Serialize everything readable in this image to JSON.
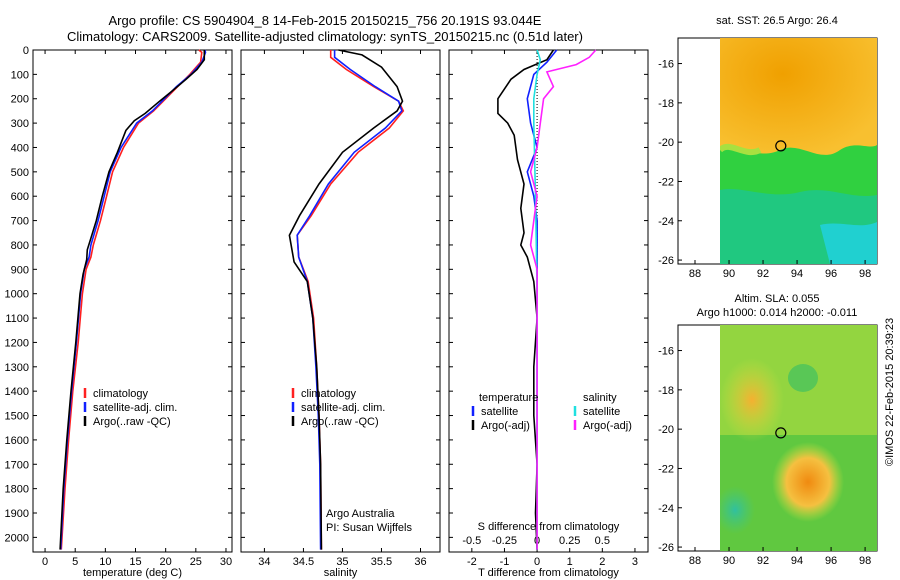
{
  "header": {
    "line1": "Argo profile: CS 5904904_8 14-Feb-2015 20150215_756 20.191S 93.044E",
    "line2": "Climatology: CARS2009. Satellite-adjusted climatology: synTS_20150215.nc (0.51d later)"
  },
  "colors": {
    "climatology": "#ff2020",
    "satellite": "#1020ff",
    "argo": "#000000",
    "sat_salinity": "#20e0e0",
    "argo_adj_salinity": "#ff20ff"
  },
  "credit": "©IMOS 22-Feb-2015 20:39:23",
  "depth_ticks": [
    "0",
    "100",
    "200",
    "300",
    "400",
    "500",
    "600",
    "700",
    "800",
    "900",
    "1000",
    "1100",
    "1200",
    "1300",
    "1400",
    "1500",
    "1600",
    "1700",
    "1800",
    "1900",
    "2000"
  ],
  "chart_data": [
    {
      "type": "line",
      "id": "temperature",
      "xlabel": "temperature (deg C)",
      "ylabel": "",
      "xlim": [
        -2,
        31
      ],
      "ylim": [
        0,
        2060
      ],
      "xticks": [
        0,
        5,
        10,
        15,
        20,
        25,
        30
      ],
      "x_tick_labels": [
        "0",
        "5",
        "10",
        "15",
        "20",
        "25",
        "30"
      ],
      "legend": [
        "climatology",
        "satellite-adj. clim.",
        "Argo(..raw -QC)"
      ],
      "series": [
        {
          "name": "climatology",
          "color": "#ff2020",
          "points": [
            [
              25.5,
              0
            ],
            [
              26,
              10
            ],
            [
              25.8,
              50
            ],
            [
              24,
              100
            ],
            [
              22,
              150
            ],
            [
              20,
              200
            ],
            [
              18,
              250
            ],
            [
              15.5,
              300
            ],
            [
              13,
              400
            ],
            [
              11.2,
              500
            ],
            [
              10.2,
              600
            ],
            [
              9.2,
              700
            ],
            [
              8,
              800
            ],
            [
              7.6,
              850
            ],
            [
              6.8,
              900
            ],
            [
              6.2,
              1000
            ],
            [
              5.5,
              1200
            ],
            [
              4.6,
              1400
            ],
            [
              3.9,
              1600
            ],
            [
              3.3,
              1800
            ],
            [
              2.7,
              2050
            ]
          ]
        },
        {
          "name": "satellite-adj. clim.",
          "color": "#1020ff",
          "points": [
            [
              26.5,
              0
            ],
            [
              26.6,
              10
            ],
            [
              26,
              50
            ],
            [
              24.2,
              100
            ],
            [
              21.8,
              150
            ],
            [
              19.8,
              200
            ],
            [
              17.8,
              250
            ],
            [
              15.2,
              300
            ],
            [
              12.6,
              400
            ],
            [
              10.8,
              500
            ],
            [
              9.8,
              600
            ],
            [
              8.8,
              700
            ],
            [
              7.6,
              800
            ],
            [
              7.3,
              850
            ],
            [
              6.5,
              900
            ],
            [
              5.9,
              1000
            ],
            [
              5.2,
              1200
            ],
            [
              4.4,
              1400
            ],
            [
              3.7,
              1600
            ],
            [
              3.1,
              1800
            ],
            [
              2.6,
              2050
            ]
          ]
        },
        {
          "name": "Argo(..raw -QC)",
          "color": "#000000",
          "points": [
            [
              26.4,
              0
            ],
            [
              26.4,
              40
            ],
            [
              25.2,
              80
            ],
            [
              23.4,
              120
            ],
            [
              21,
              170
            ],
            [
              19,
              210
            ],
            [
              16.6,
              260
            ],
            [
              14.8,
              290
            ],
            [
              13.4,
              330
            ],
            [
              12,
              420
            ],
            [
              10.6,
              500
            ],
            [
              9.5,
              600
            ],
            [
              8.5,
              700
            ],
            [
              7.5,
              780
            ],
            [
              7,
              820
            ],
            [
              6.9,
              860
            ],
            [
              6.3,
              920
            ],
            [
              5.8,
              1000
            ],
            [
              5.1,
              1200
            ],
            [
              4.3,
              1400
            ],
            [
              3.6,
              1600
            ],
            [
              3,
              1800
            ],
            [
              2.5,
              2050
            ]
          ]
        }
      ]
    },
    {
      "type": "line",
      "id": "salinity",
      "xlabel": "salinity",
      "ylabel": "",
      "xlim": [
        33.7,
        36.25
      ],
      "ylim": [
        0,
        2060
      ],
      "xticks": [
        34,
        34.5,
        35,
        35.5,
        36
      ],
      "x_tick_labels": [
        "34",
        "34.5",
        "35",
        "35.5",
        "36"
      ],
      "legend": [
        "climatology",
        "satellite-adj. clim.",
        "Argo(..raw -QC)"
      ],
      "annotation": [
        "Argo Australia",
        "PI: Susan Wijffels"
      ],
      "series": [
        {
          "name": "climatology",
          "color": "#ff2020",
          "points": [
            [
              34.85,
              0
            ],
            [
              34.85,
              30
            ],
            [
              35.05,
              80
            ],
            [
              35.4,
              150
            ],
            [
              35.72,
              210
            ],
            [
              35.78,
              250
            ],
            [
              35.6,
              320
            ],
            [
              35.2,
              420
            ],
            [
              34.85,
              550
            ],
            [
              34.6,
              680
            ],
            [
              34.42,
              760
            ],
            [
              34.44,
              850
            ],
            [
              34.56,
              950
            ],
            [
              34.63,
              1100
            ],
            [
              34.67,
              1300
            ],
            [
              34.7,
              1500
            ],
            [
              34.72,
              1700
            ],
            [
              34.73,
              2050
            ]
          ]
        },
        {
          "name": "satellite-adj. clim.",
          "color": "#1020ff",
          "points": [
            [
              34.9,
              0
            ],
            [
              34.9,
              30
            ],
            [
              35.1,
              80
            ],
            [
              35.42,
              150
            ],
            [
              35.72,
              210
            ],
            [
              35.76,
              250
            ],
            [
              35.55,
              320
            ],
            [
              35.15,
              420
            ],
            [
              34.82,
              550
            ],
            [
              34.58,
              680
            ],
            [
              34.42,
              760
            ],
            [
              34.44,
              850
            ],
            [
              34.55,
              950
            ],
            [
              34.62,
              1100
            ],
            [
              34.66,
              1300
            ],
            [
              34.69,
              1500
            ],
            [
              34.71,
              1700
            ],
            [
              34.72,
              2050
            ]
          ]
        },
        {
          "name": "Argo(..raw -QC)",
          "color": "#000000",
          "points": [
            [
              34.95,
              0
            ],
            [
              35.25,
              20
            ],
            [
              35.5,
              70
            ],
            [
              35.7,
              150
            ],
            [
              35.77,
              210
            ],
            [
              35.7,
              250
            ],
            [
              35.4,
              320
            ],
            [
              35.0,
              420
            ],
            [
              34.7,
              550
            ],
            [
              34.45,
              680
            ],
            [
              34.32,
              760
            ],
            [
              34.38,
              870
            ],
            [
              34.55,
              950
            ],
            [
              34.62,
              1100
            ],
            [
              34.67,
              1300
            ],
            [
              34.7,
              1500
            ],
            [
              34.72,
              1700
            ],
            [
              34.73,
              2050
            ]
          ]
        }
      ]
    },
    {
      "type": "line",
      "id": "difference",
      "xlabel": "T difference from climatology",
      "xlabel_top": "S difference from climatology",
      "xlim": [
        -2.7,
        3.4
      ],
      "ylim": [
        0,
        2060
      ],
      "xticks": [
        -2,
        -1,
        0,
        1,
        2,
        3
      ],
      "x_tick_labels": [
        "-2",
        "-1",
        "0",
        "1",
        "2",
        "3"
      ],
      "x_tick_labels_top": [
        "-0.5",
        "-0.25",
        "0",
        "0.25",
        "0.5"
      ],
      "legend": [
        "temperature",
        "satellite",
        "Argo(-adj)",
        "salinity",
        "satellite",
        "Argo(-adj)"
      ],
      "series": [
        {
          "name": "temperature satellite",
          "color": "#1020ff",
          "points": [
            [
              0.6,
              0
            ],
            [
              0.3,
              50
            ],
            [
              -0.1,
              100
            ],
            [
              -0.3,
              200
            ],
            [
              -0.2,
              300
            ],
            [
              0,
              400
            ],
            [
              -0.3,
              500
            ],
            [
              -0.1,
              600
            ],
            [
              0,
              700
            ],
            [
              0,
              900
            ],
            [
              0,
              2050
            ]
          ]
        },
        {
          "name": "temperature Argo(-adj)",
          "color": "#000000",
          "points": [
            [
              0.5,
              0
            ],
            [
              0.3,
              40
            ],
            [
              -0.4,
              80
            ],
            [
              -0.8,
              120
            ],
            [
              -1.2,
              200
            ],
            [
              -1.2,
              260
            ],
            [
              -0.9,
              300
            ],
            [
              -0.7,
              350
            ],
            [
              -0.6,
              450
            ],
            [
              -0.4,
              550
            ],
            [
              -0.5,
              650
            ],
            [
              -0.4,
              750
            ],
            [
              -0.5,
              800
            ],
            [
              -0.3,
              850
            ],
            [
              -0.1,
              950
            ],
            [
              0,
              1100
            ],
            [
              -0.1,
              1300
            ],
            [
              -0.1,
              1500
            ],
            [
              0,
              1700
            ],
            [
              -0.05,
              1900
            ],
            [
              0,
              2050
            ]
          ]
        },
        {
          "name": "salinity satellite",
          "color": "#20e0e0",
          "points": [
            [
              0,
              0
            ],
            [
              0.1,
              40
            ],
            [
              0,
              100
            ],
            [
              -0.1,
              200
            ],
            [
              -0.1,
              300
            ],
            [
              -0.05,
              600
            ],
            [
              0,
              1000
            ],
            [
              0,
              2050
            ]
          ]
        },
        {
          "name": "salinity Argo(-adj)",
          "color": "#ff20ff",
          "points": [
            [
              1.8,
              0
            ],
            [
              1.6,
              30
            ],
            [
              1.2,
              60
            ],
            [
              0.3,
              90
            ],
            [
              0.5,
              150
            ],
            [
              0.2,
              200
            ],
            [
              0.1,
              300
            ],
            [
              0,
              400
            ],
            [
              -0.2,
              500
            ],
            [
              0,
              600
            ],
            [
              -0.1,
              700
            ],
            [
              -0.2,
              800
            ],
            [
              0,
              900
            ],
            [
              0,
              2050
            ]
          ]
        }
      ]
    },
    {
      "type": "heatmap",
      "id": "sst-map",
      "title": "sat. SST: 26.5  Argo: 26.4",
      "xlim": [
        87,
        98.7
      ],
      "ylim": [
        -26.2,
        -14.7
      ],
      "xticks": [
        88,
        90,
        92,
        94,
        96,
        98
      ],
      "yticks": [
        -16,
        -18,
        -20,
        -22,
        -24,
        -26
      ],
      "argo_position": [
        93.044,
        -20.191
      ]
    },
    {
      "type": "heatmap",
      "id": "sla-map",
      "title": "Altim. SLA: 0.055",
      "subtitle": "Argo h1000: 0.014 h2000: -0.011",
      "xlim": [
        87,
        98.7
      ],
      "ylim": [
        -26.2,
        -14.7
      ],
      "xticks": [
        88,
        90,
        92,
        94,
        96,
        98
      ],
      "yticks": [
        -16,
        -18,
        -20,
        -22,
        -24,
        -26
      ],
      "argo_position": [
        93.044,
        -20.191
      ]
    }
  ]
}
